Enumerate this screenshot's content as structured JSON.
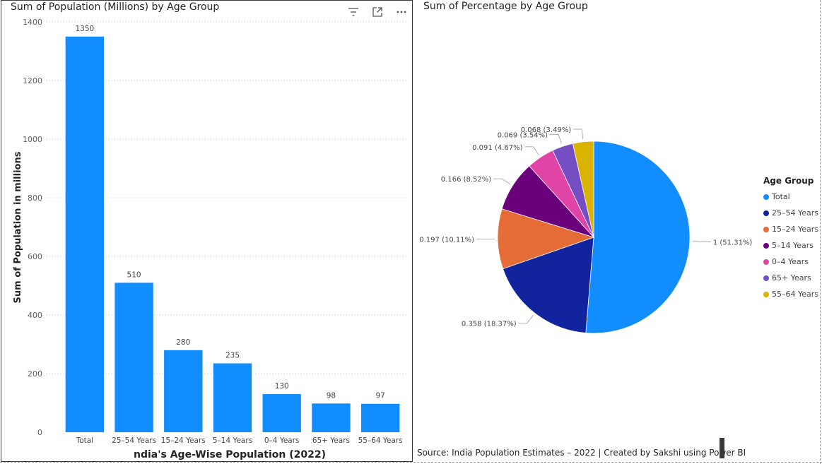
{
  "bar_panel": {
    "title": "Sum of Population (Millions) by Age Group"
  },
  "pie_panel": {
    "title": "Sum of Percentage by Age Group"
  },
  "footer": {
    "source": "Source: India Population Estimates – 2022 | Created by Sakshi using Power BI"
  },
  "icons": [
    "filter-icon",
    "focus-mode-icon",
    "more-options-icon"
  ],
  "chart_data": [
    {
      "type": "bar",
      "title": "Sum of Population (Millions) by Age Group",
      "xlabel": "ndia's Age-Wise Population (2022)",
      "ylabel": "Sum of Population in millions",
      "categories": [
        "Total",
        "25–54 Years",
        "15–24 Years",
        "5–14 Years",
        "0–4 Years",
        "65+ Years",
        "55–64 Years"
      ],
      "values": [
        1350,
        510,
        280,
        235,
        130,
        98,
        97
      ],
      "ylim": [
        0,
        1400
      ],
      "yticks": [
        0,
        200,
        400,
        600,
        800,
        1000,
        1200,
        1400
      ],
      "grid": true,
      "color": "#118DFF"
    },
    {
      "type": "pie",
      "title": "Sum of Percentage by Age Group",
      "legend_title": "Age Group",
      "legend_position": "right",
      "slices": [
        {
          "label": "Total",
          "value": 1,
          "percent": "51.31%",
          "color": "#118DFF"
        },
        {
          "label": "25–54 Years",
          "value": 0.358,
          "percent": "18.37%",
          "color": "#12239E"
        },
        {
          "label": "15–24 Years",
          "value": 0.197,
          "percent": "10.11%",
          "color": "#E66C37"
        },
        {
          "label": "5–14 Years",
          "value": 0.166,
          "percent": "8.52%",
          "color": "#6B007B"
        },
        {
          "label": "0–4 Years",
          "value": 0.091,
          "percent": "4.67%",
          "color": "#E044A7"
        },
        {
          "label": "65+ Years",
          "value": 0.069,
          "percent": "3.54%",
          "color": "#744EC2"
        },
        {
          "label": "55–64 Years",
          "value": 0.068,
          "percent": "3.49%",
          "color": "#D9B300"
        }
      ]
    }
  ]
}
